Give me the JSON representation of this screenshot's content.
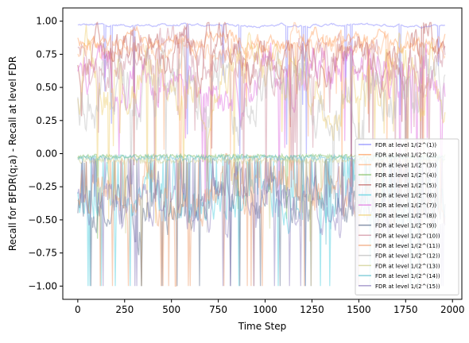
{
  "chart_data": {
    "type": "line",
    "xlabel": "Time Step",
    "ylabel": "Recall for BFDR(q;a) - Recall at level FDR",
    "xlim": [
      -80,
      2050
    ],
    "ylim": [
      -1.1,
      1.1
    ],
    "xticks": [
      0,
      250,
      500,
      750,
      1000,
      1250,
      1500,
      1750,
      2000
    ],
    "yticks": [
      -1.0,
      -0.75,
      -0.5,
      -0.25,
      0.0,
      0.25,
      0.5,
      0.75,
      1.0
    ],
    "ytick_labels": [
      "−1.00",
      "−0.75",
      "−0.50",
      "−0.25",
      "0.00",
      "0.25",
      "0.50",
      "0.75",
      "1.00"
    ],
    "x_max": 1960,
    "legend_position": "bottom-right",
    "grid": false,
    "series": [
      {
        "name": "FDR at level 1/(2^(1))",
        "color": "#7b7bff",
        "group": "top",
        "base": 0.97,
        "spread": 0.02
      },
      {
        "name": "FDR at level 1/(2^(2))",
        "color": "#ff9955",
        "group": "top",
        "base": 0.85,
        "spread": 0.12
      },
      {
        "name": "FDR at level 1/(2^(3))",
        "color": "#ffb07a",
        "group": "top",
        "base": 0.8,
        "spread": 0.18
      },
      {
        "name": "FDR at level 1/(2^(4))",
        "color": "#77bb55",
        "group": "mid",
        "base": -0.02,
        "spread": 0.03
      },
      {
        "name": "FDR at level 1/(2^(5))",
        "color": "#bb5555",
        "group": "top",
        "base": 0.75,
        "spread": 0.3
      },
      {
        "name": "FDR at level 1/(2^(6))",
        "color": "#44ccdd",
        "group": "bottom",
        "base": -0.35,
        "spread": 0.3
      },
      {
        "name": "FDR at level 1/(2^(7))",
        "color": "#dd66dd",
        "group": "top",
        "base": 0.6,
        "spread": 0.35
      },
      {
        "name": "FDR at level 1/(2^(8))",
        "color": "#eecc66",
        "group": "top",
        "base": 0.55,
        "spread": 0.4
      },
      {
        "name": "FDR at level 1/(2^(9))",
        "color": "#556688",
        "group": "bottom",
        "base": -0.4,
        "spread": 0.35
      },
      {
        "name": "FDR at level 1/(2^(10))",
        "color": "#cc8899",
        "group": "top",
        "base": 0.7,
        "spread": 0.3
      },
      {
        "name": "FDR at level 1/(2^(11))",
        "color": "#ee9966",
        "group": "bottom",
        "base": -0.3,
        "spread": 0.35
      },
      {
        "name": "FDR at level 1/(2^(12))",
        "color": "#bbbbbb",
        "group": "top",
        "base": 0.5,
        "spread": 0.45
      },
      {
        "name": "FDR at level 1/(2^(13))",
        "color": "#cccc88",
        "group": "mid",
        "base": -0.05,
        "spread": 0.05
      },
      {
        "name": "FDR at level 1/(2^(14))",
        "color": "#55bbcc",
        "group": "mid",
        "base": -0.03,
        "spread": 0.04
      },
      {
        "name": "FDR at level 1/(2^(15))",
        "color": "#8877bb",
        "group": "bottom",
        "base": -0.35,
        "spread": 0.35
      }
    ]
  }
}
